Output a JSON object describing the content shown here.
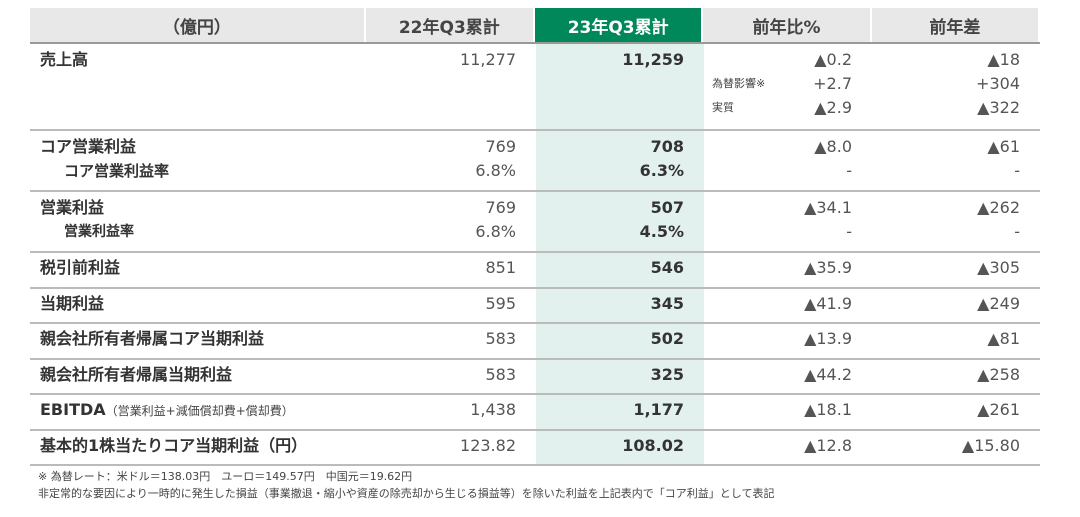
{
  "headers": [
    "（億円）",
    "22年Q3累計",
    "23年Q3累計",
    "前年比%",
    "前年差"
  ],
  "sales": {
    "label": "売上高",
    "prev": "11,277",
    "cur": "11,259",
    "pct": "▲0.2",
    "diff": "▲18",
    "fx_label": "為替影響※",
    "fx_pct": "+2.7",
    "fx_diff": "+304",
    "real_label": "実質",
    "real_pct": "▲2.9",
    "real_diff": "▲322"
  },
  "core": {
    "label": "コア営業利益",
    "prev": "769",
    "cur": "708",
    "pct": "▲8.0",
    "diff": "▲61",
    "rate_label": "コア営業利益率",
    "rate_prev": "6.8%",
    "rate_cur": "6.3%",
    "rate_pct": "-",
    "rate_diff": "-"
  },
  "op": {
    "label": "営業利益",
    "prev": "769",
    "cur": "507",
    "pct": "▲34.1",
    "diff": "▲262",
    "rate_label": "営業利益率",
    "rate_prev": "6.8%",
    "rate_cur": "4.5%",
    "rate_pct": "-",
    "rate_diff": "-"
  },
  "rows": [
    {
      "label": "税引前利益",
      "prev": "851",
      "cur": "546",
      "pct": "▲35.9",
      "diff": "▲305"
    },
    {
      "label": "当期利益",
      "prev": "595",
      "cur": "345",
      "pct": "▲41.9",
      "diff": "▲249"
    },
    {
      "label": "親会社所有者帰属コア当期利益",
      "prev": "583",
      "cur": "502",
      "pct": "▲13.9",
      "diff": "▲81"
    },
    {
      "label": "親会社所有者帰属当期利益",
      "prev": "583",
      "cur": "325",
      "pct": "▲44.2",
      "diff": "▲258"
    },
    {
      "label": "EBITDA",
      "note": "（営業利益+減価償却費+償却費）",
      "prev": "1,438",
      "cur": "1,177",
      "pct": "▲18.1",
      "diff": "▲261"
    },
    {
      "label": "基本的1株当たりコア当期利益（円）",
      "prev": "123.82",
      "cur": "108.02",
      "pct": "▲12.8",
      "diff": "▲15.80"
    }
  ],
  "notes": [
    "※ 為替レート：米ドル＝138.03円　ユーロ＝149.57円　中国元＝19.62円",
    "非定常的な要因により一時的に発生した損益（事業撤退・縮小や資産の除売却から生じる損益等）を除いた利益を上記表内で「コア利益」として表記"
  ],
  "colors": {
    "accent": "#00875a",
    "highlight": "#e3f1ee"
  }
}
